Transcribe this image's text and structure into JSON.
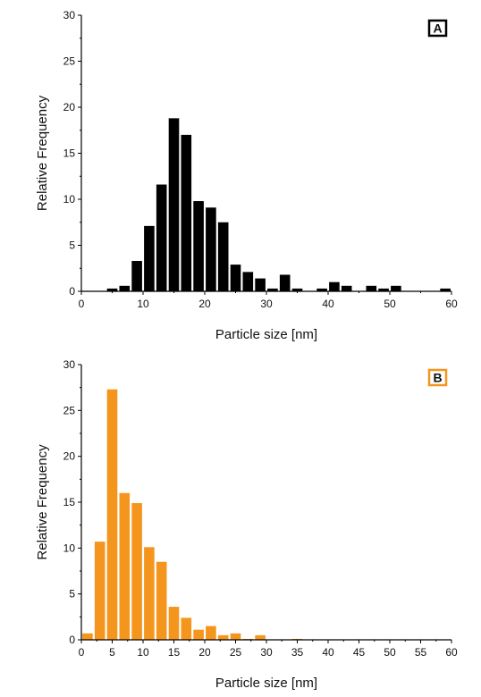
{
  "chart_data": [
    {
      "type": "bar",
      "panel_label": "A",
      "color": "#000000",
      "panel_border_color": "#000000",
      "xlabel": "Particle size [nm]",
      "ylabel": "Relative Frequency",
      "xlim": [
        0,
        60
      ],
      "ylim": [
        0,
        30
      ],
      "xticks": [
        0,
        10,
        20,
        30,
        40,
        50,
        60
      ],
      "yticks": [
        0,
        5,
        10,
        15,
        20,
        25,
        30
      ],
      "bin_width": 2,
      "x": [
        5,
        7,
        9,
        11,
        13,
        15,
        17,
        19,
        21,
        23,
        25,
        27,
        29,
        31,
        33,
        35,
        37,
        39,
        41,
        43,
        45,
        47,
        49,
        51,
        53,
        55,
        57,
        59
      ],
      "values": [
        0.3,
        0.6,
        3.3,
        7.1,
        11.6,
        18.8,
        17.0,
        9.8,
        9.1,
        7.5,
        2.9,
        2.1,
        1.4,
        0.3,
        1.8,
        0.3,
        0,
        0.3,
        1.0,
        0.6,
        0,
        0.6,
        0.3,
        0.6,
        0,
        0,
        0,
        0.3
      ],
      "grid": false
    },
    {
      "type": "bar",
      "panel_label": "B",
      "color": "#f4961e",
      "panel_border_color": "#f4961e",
      "xlabel": "Particle size [nm]",
      "ylabel": "Relative Frequency",
      "xlim": [
        0,
        60
      ],
      "ylim": [
        0,
        30
      ],
      "xticks": [
        0,
        5,
        10,
        15,
        20,
        25,
        30,
        35,
        40,
        45,
        50,
        55,
        60
      ],
      "yticks": [
        0,
        5,
        10,
        15,
        20,
        25,
        30
      ],
      "bin_width": 2,
      "x": [
        1,
        3,
        5,
        7,
        9,
        11,
        13,
        15,
        17,
        19,
        21,
        23,
        25,
        27,
        29,
        31,
        33,
        35
      ],
      "values": [
        0.7,
        10.7,
        27.3,
        16.0,
        14.9,
        10.1,
        8.5,
        3.6,
        2.4,
        1.1,
        1.5,
        0.5,
        0.7,
        0.1,
        0.5,
        0,
        0,
        0.1
      ],
      "grid": false
    }
  ]
}
